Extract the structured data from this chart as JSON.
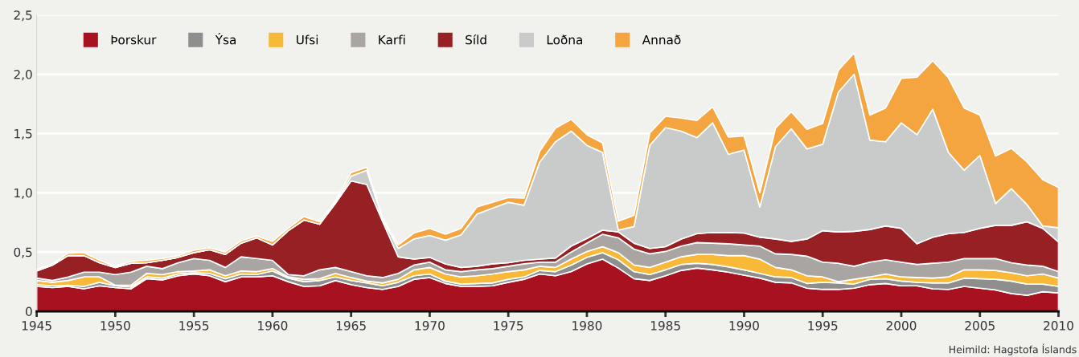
{
  "chart_data": {
    "type": "area",
    "stacked": true,
    "x": [
      1945,
      1946,
      1947,
      1948,
      1949,
      1950,
      1951,
      1952,
      1953,
      1954,
      1955,
      1956,
      1957,
      1958,
      1959,
      1960,
      1961,
      1962,
      1963,
      1964,
      1965,
      1966,
      1967,
      1968,
      1969,
      1970,
      1971,
      1972,
      1973,
      1974,
      1975,
      1976,
      1977,
      1978,
      1979,
      1980,
      1981,
      1982,
      1983,
      1984,
      1985,
      1986,
      1987,
      1988,
      1989,
      1990,
      1991,
      1992,
      1993,
      1994,
      1995,
      1996,
      1997,
      1998,
      1999,
      2000,
      2001,
      2002,
      2003,
      2004,
      2005,
      2006,
      2007,
      2008,
      2009,
      2010
    ],
    "series": [
      {
        "name": "Þorskur",
        "color": "#a8111f",
        "values": [
          0.21,
          0.2,
          0.21,
          0.19,
          0.215,
          0.2,
          0.19,
          0.275,
          0.265,
          0.3,
          0.315,
          0.3,
          0.25,
          0.29,
          0.29,
          0.3,
          0.25,
          0.21,
          0.215,
          0.26,
          0.225,
          0.2,
          0.185,
          0.21,
          0.27,
          0.285,
          0.235,
          0.21,
          0.21,
          0.215,
          0.245,
          0.27,
          0.315,
          0.3,
          0.335,
          0.4,
          0.44,
          0.365,
          0.275,
          0.26,
          0.3,
          0.345,
          0.365,
          0.35,
          0.33,
          0.305,
          0.28,
          0.245,
          0.24,
          0.195,
          0.185,
          0.185,
          0.195,
          0.225,
          0.235,
          0.215,
          0.215,
          0.19,
          0.185,
          0.21,
          0.195,
          0.18,
          0.15,
          0.135,
          0.165,
          0.155
        ]
      },
      {
        "name": "Ýsa",
        "color": "#8e8e8e",
        "values": [
          0.015,
          0.015,
          0.01,
          0.02,
          0.03,
          0.015,
          0.015,
          0.015,
          0.015,
          0.015,
          0.01,
          0.02,
          0.025,
          0.025,
          0.02,
          0.04,
          0.03,
          0.04,
          0.045,
          0.03,
          0.035,
          0.04,
          0.03,
          0.035,
          0.03,
          0.03,
          0.02,
          0.02,
          0.025,
          0.025,
          0.025,
          0.02,
          0.03,
          0.035,
          0.055,
          0.055,
          0.055,
          0.07,
          0.06,
          0.05,
          0.05,
          0.05,
          0.04,
          0.045,
          0.045,
          0.045,
          0.04,
          0.045,
          0.045,
          0.04,
          0.06,
          0.055,
          0.035,
          0.045,
          0.04,
          0.04,
          0.03,
          0.05,
          0.055,
          0.07,
          0.08,
          0.09,
          0.105,
          0.095,
          0.065,
          0.055
        ]
      },
      {
        "name": "Ufsi",
        "color": "#f8b938",
        "values": [
          0.035,
          0.03,
          0.04,
          0.08,
          0.045,
          0.005,
          0.015,
          0.03,
          0.03,
          0.02,
          0.015,
          0.03,
          0.025,
          0.025,
          0.025,
          0.02,
          0.01,
          0.02,
          0.015,
          0.03,
          0.025,
          0.015,
          0.025,
          0.025,
          0.05,
          0.055,
          0.06,
          0.06,
          0.065,
          0.075,
          0.065,
          0.06,
          0.035,
          0.035,
          0.05,
          0.05,
          0.05,
          0.06,
          0.055,
          0.06,
          0.065,
          0.065,
          0.075,
          0.085,
          0.095,
          0.12,
          0.12,
          0.08,
          0.065,
          0.065,
          0.045,
          0.01,
          0.04,
          0.02,
          0.04,
          0.035,
          0.04,
          0.04,
          0.05,
          0.07,
          0.075,
          0.075,
          0.07,
          0.07,
          0.085,
          0.07
        ]
      },
      {
        "name": "Karfi",
        "color": "#a9a5a3",
        "values": [
          0.02,
          0.015,
          0.03,
          0.04,
          0.04,
          0.09,
          0.11,
          0.06,
          0.05,
          0.075,
          0.105,
          0.08,
          0.07,
          0.12,
          0.11,
          0.07,
          0.02,
          0.03,
          0.075,
          0.05,
          0.05,
          0.045,
          0.045,
          0.05,
          0.04,
          0.045,
          0.035,
          0.045,
          0.05,
          0.045,
          0.045,
          0.05,
          0.035,
          0.045,
          0.06,
          0.07,
          0.105,
          0.125,
          0.135,
          0.115,
          0.09,
          0.09,
          0.1,
          0.095,
          0.1,
          0.09,
          0.11,
          0.115,
          0.13,
          0.165,
          0.125,
          0.155,
          0.11,
          0.125,
          0.12,
          0.125,
          0.11,
          0.125,
          0.125,
          0.095,
          0.095,
          0.1,
          0.085,
          0.09,
          0.065,
          0.055
        ]
      },
      {
        "name": "Síld",
        "color": "#962023",
        "values": [
          0.06,
          0.13,
          0.18,
          0.14,
          0.08,
          0.06,
          0.075,
          0.03,
          0.07,
          0.045,
          0.05,
          0.09,
          0.11,
          0.115,
          0.175,
          0.13,
          0.37,
          0.47,
          0.385,
          0.54,
          0.765,
          0.77,
          0.475,
          0.14,
          0.05,
          0.04,
          0.05,
          0.035,
          0.03,
          0.04,
          0.03,
          0.03,
          0.025,
          0.035,
          0.05,
          0.04,
          0.035,
          0.05,
          0.05,
          0.045,
          0.04,
          0.06,
          0.075,
          0.09,
          0.095,
          0.1,
          0.075,
          0.125,
          0.11,
          0.145,
          0.265,
          0.265,
          0.295,
          0.275,
          0.285,
          0.285,
          0.175,
          0.22,
          0.24,
          0.22,
          0.255,
          0.28,
          0.315,
          0.365,
          0.32,
          0.25
        ]
      },
      {
        "name": "Loðna",
        "color": "#c9caca",
        "values": [
          0,
          0,
          0,
          0,
          0,
          0,
          0,
          0,
          0,
          0,
          0,
          0,
          0,
          0,
          0,
          0,
          0,
          0,
          0,
          0,
          0.04,
          0.12,
          0.02,
          0.07,
          0.17,
          0.185,
          0.2,
          0.275,
          0.44,
          0.47,
          0.51,
          0.465,
          0.82,
          0.98,
          0.97,
          0.785,
          0.655,
          0.015,
          0.14,
          0.87,
          1.005,
          0.91,
          0.81,
          0.925,
          0.66,
          0.7,
          0.255,
          0.78,
          0.95,
          0.76,
          0.73,
          1.18,
          1.325,
          0.755,
          0.71,
          0.89,
          0.92,
          1.08,
          0.685,
          0.525,
          0.615,
          0.185,
          0.31,
          0.145,
          0.02,
          0.12
        ]
      },
      {
        "name": "Annað",
        "color": "#f5a540",
        "values": [
          0.015,
          0.01,
          0.02,
          0.025,
          0.02,
          0.01,
          0.015,
          0.02,
          0.015,
          0.015,
          0.02,
          0.015,
          0.02,
          0.02,
          0.015,
          0.03,
          0.02,
          0.03,
          0.02,
          0.02,
          0.03,
          0.025,
          0.01,
          0.03,
          0.05,
          0.06,
          0.05,
          0.055,
          0.06,
          0.05,
          0.04,
          0.06,
          0.09,
          0.115,
          0.1,
          0.09,
          0.08,
          0.075,
          0.095,
          0.105,
          0.095,
          0.11,
          0.145,
          0.135,
          0.145,
          0.12,
          0.12,
          0.155,
          0.145,
          0.165,
          0.175,
          0.185,
          0.18,
          0.21,
          0.285,
          0.375,
          0.485,
          0.41,
          0.63,
          0.525,
          0.34,
          0.4,
          0.34,
          0.36,
          0.39,
          0.34
        ]
      }
    ],
    "xlim": [
      1945,
      2010
    ],
    "xticks": [
      1945,
      1950,
      1955,
      1960,
      1965,
      1970,
      1975,
      1980,
      1985,
      1990,
      1995,
      2000,
      2005,
      2010
    ],
    "ylim": [
      0,
      2.5
    ],
    "yticks": [
      {
        "value": 0,
        "label": "0"
      },
      {
        "value": 0.5,
        "label": "0,5"
      },
      {
        "value": 1.0,
        "label": "1,0"
      },
      {
        "value": 1.5,
        "label": "1,5"
      },
      {
        "value": 2.0,
        "label": "2,0"
      },
      {
        "value": 2.5,
        "label": "2,5"
      }
    ],
    "grid": "y",
    "legend": "top left",
    "annotations": [
      "Heimild: Hagstofa Íslands"
    ]
  }
}
